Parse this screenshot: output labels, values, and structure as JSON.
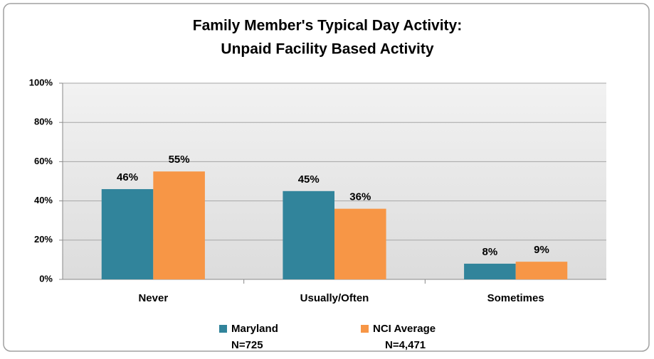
{
  "chart_data": {
    "type": "bar",
    "title": [
      "Family Member's Typical Day Activity:",
      "Unpaid Facility Based Activity"
    ],
    "categories": [
      "Never",
      "Usually/Often",
      "Sometimes"
    ],
    "series": [
      {
        "name": "Maryland",
        "sample": "N=725",
        "color": "#31849b",
        "values": [
          46,
          45,
          8
        ],
        "value_labels": [
          "46%",
          "45%",
          "8%"
        ]
      },
      {
        "name": "NCI Average",
        "sample": "N=4,471",
        "color": "#f79646",
        "values": [
          55,
          36,
          9
        ],
        "value_labels": [
          "55%",
          "36%",
          "9%"
        ]
      }
    ],
    "ylim": [
      0,
      100
    ],
    "yticks": [
      {
        "value": 0,
        "label": "0%"
      },
      {
        "value": 20,
        "label": "20%"
      },
      {
        "value": 40,
        "label": "40%"
      },
      {
        "value": 60,
        "label": "60%"
      },
      {
        "value": 80,
        "label": "80%"
      },
      {
        "value": 100,
        "label": "100%"
      }
    ],
    "grid": true,
    "legend": "bottom"
  }
}
